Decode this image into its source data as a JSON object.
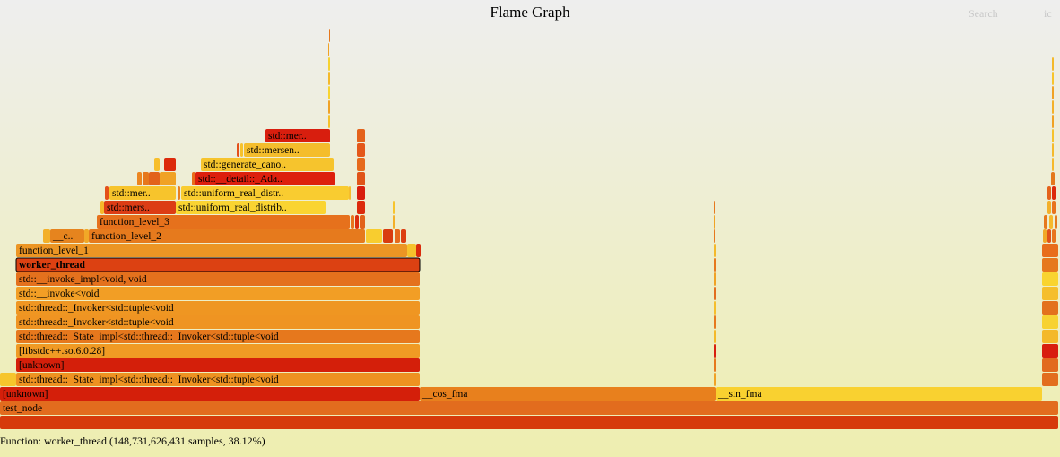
{
  "header": {
    "title": "Flame Graph",
    "search_label": "Search",
    "ic_label": "ic"
  },
  "status": {
    "details": "Function: worker_thread (148,731,626,431 samples, 38.12%)"
  },
  "frames": [
    {
      "name": "root-frame",
      "label": "",
      "color": "#d63a0b"
    },
    {
      "name": "test-node-frame",
      "label": "test_node",
      "color": "#e26c1e"
    },
    {
      "name": "unknown-frame-bottom",
      "label": "[unknown]",
      "color": "#d41f0a"
    },
    {
      "name": "cos-fma-frame",
      "label": "__cos_fma",
      "color": "#e8801d"
    },
    {
      "name": "sin-fma-frame",
      "label": "__sin_fma",
      "color": "#f9d130"
    },
    {
      "name": "state-impl-frame-1",
      "label": "std::thread::_State_impl<std::thread::_Invoker<std::tuple<void",
      "color": "#ee9221"
    },
    {
      "name": "unknown-frame-2",
      "label": "[unknown]",
      "color": "#d41f0a"
    },
    {
      "name": "libstdcpp-frame",
      "label": "[libstdc++.so.6.0.28]",
      "color": "#f09a24"
    },
    {
      "name": "state-impl-frame-2",
      "label": "std::thread::_State_impl<std::thread::_Invoker<std::tuple<void",
      "color": "#e6781d"
    },
    {
      "name": "invoker-frame-1",
      "label": "std::thread::_Invoker<std::tuple<void",
      "color": "#ef9422"
    },
    {
      "name": "invoker-frame-2",
      "label": "std::thread::_Invoker<std::tuple<void",
      "color": "#ef9622"
    },
    {
      "name": "invoke-frame",
      "label": "std::__invoke<void",
      "color": "#f29e25"
    },
    {
      "name": "invoke-impl-frame",
      "label": "std::__invoke_impl<void, void",
      "color": "#e4711d"
    },
    {
      "name": "worker-thread-frame",
      "label": "worker_thread",
      "color": "#dc4112"
    },
    {
      "name": "function-level-1-frame",
      "label": "function_level_1",
      "color": "#ec9524"
    },
    {
      "name": "function-level-2-frame",
      "label": "function_level_2",
      "color": "#e67a1d"
    },
    {
      "name": "truncated-c-frame",
      "label": "__c..",
      "color": "#e6841e"
    },
    {
      "name": "function-level-3-frame",
      "label": "function_level_3",
      "color": "#e6711c"
    },
    {
      "name": "mersenne-frame-1",
      "label": "std::mers..",
      "color": "#dc3d15"
    },
    {
      "name": "uniform-distrib-frame-1",
      "label": "std::uniform_real_distrib..",
      "color": "#fad432"
    },
    {
      "name": "mersenne-frame-2",
      "label": "std::mer..",
      "color": "#f7c42c"
    },
    {
      "name": "uniform-distr-frame-2",
      "label": "std::uniform_real_distr..",
      "color": "#f9cc30"
    },
    {
      "name": "detail-adaptor-frame",
      "label": "std::__detail::_Ada..",
      "color": "#dd1f0d"
    },
    {
      "name": "generate-canonical-frame",
      "label": "std::generate_cano..",
      "color": "#f6c42d"
    },
    {
      "name": "mersenne-frame-3",
      "label": "std::mersen..",
      "color": "#f4bd2c"
    },
    {
      "name": "mersenne-frame-4",
      "label": "std::mer..",
      "color": "#d81e0e"
    }
  ]
}
